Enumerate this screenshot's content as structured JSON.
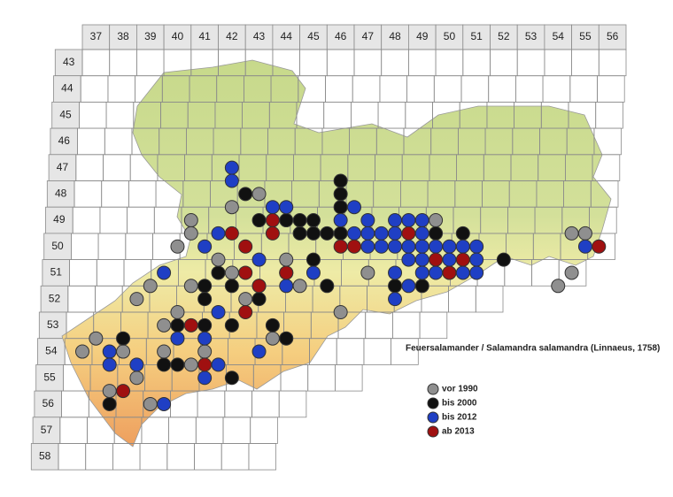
{
  "map": {
    "title": "Feuersalamander / Salamandra salamandra (Linnaeus, 1758)",
    "columns": [
      37,
      38,
      39,
      40,
      41,
      42,
      43,
      44,
      45,
      46,
      47,
      48,
      49,
      50,
      51,
      52,
      53,
      54,
      55,
      56
    ],
    "rows": [
      43,
      44,
      45,
      46,
      47,
      48,
      49,
      50,
      51,
      52,
      53,
      54,
      55,
      56,
      57,
      58
    ],
    "series": [
      {
        "label": "vor 1990",
        "color": "#8f8f8f",
        "points": [
          [
            40.5,
            49
          ],
          [
            40.5,
            49.5
          ],
          [
            42,
            48.5
          ],
          [
            43,
            48
          ],
          [
            40,
            50
          ],
          [
            41.5,
            50.5
          ],
          [
            40.5,
            51.5
          ],
          [
            39,
            51.5
          ],
          [
            38.5,
            52
          ],
          [
            40,
            52.5
          ],
          [
            39.5,
            53
          ],
          [
            37,
            53.5
          ],
          [
            36.5,
            54
          ],
          [
            38,
            54
          ],
          [
            39.5,
            54
          ],
          [
            41,
            54
          ],
          [
            38.5,
            55
          ],
          [
            39,
            56
          ],
          [
            40.5,
            54.5
          ],
          [
            42,
            51
          ],
          [
            44.5,
            51.5
          ],
          [
            46,
            52.5
          ],
          [
            47,
            51
          ],
          [
            49.5,
            49
          ],
          [
            54.5,
            49.5
          ],
          [
            55,
            49.5
          ],
          [
            54,
            51.5
          ],
          [
            54.5,
            51
          ],
          [
            42.5,
            52
          ],
          [
            43.5,
            53.5
          ],
          [
            44,
            50.5
          ],
          [
            37.5,
            55.5
          ]
        ]
      },
      {
        "label": "bis 2000",
        "color": "#111111",
        "points": [
          [
            42.5,
            48
          ],
          [
            46,
            47.5
          ],
          [
            46,
            48
          ],
          [
            46,
            48.5
          ],
          [
            43,
            49
          ],
          [
            44,
            49
          ],
          [
            44.5,
            49
          ],
          [
            45,
            49
          ],
          [
            44.5,
            49.5
          ],
          [
            45,
            49.5
          ],
          [
            45.5,
            49.5
          ],
          [
            46,
            49.5
          ],
          [
            49.5,
            49.5
          ],
          [
            50.5,
            49.5
          ],
          [
            52,
            50.5
          ],
          [
            41.5,
            51
          ],
          [
            41,
            51.5
          ],
          [
            42,
            51.5
          ],
          [
            41,
            52
          ],
          [
            43,
            51.5
          ],
          [
            44,
            51
          ],
          [
            40,
            53
          ],
          [
            41,
            53
          ],
          [
            38,
            53.5
          ],
          [
            39.5,
            54.5
          ],
          [
            40,
            54.5
          ],
          [
            42,
            55
          ],
          [
            37.5,
            56
          ],
          [
            43.5,
            53
          ],
          [
            44,
            53.5
          ],
          [
            42,
            53
          ],
          [
            48,
            51.5
          ],
          [
            49,
            51.5
          ],
          [
            45.5,
            51.5
          ],
          [
            45,
            50.5
          ],
          [
            43,
            52
          ]
        ]
      },
      {
        "label": "bis 2012",
        "color": "#1f3fc4",
        "points": [
          [
            42,
            47
          ],
          [
            42,
            47.5
          ],
          [
            43.5,
            48.5
          ],
          [
            44,
            48.5
          ],
          [
            46.5,
            48.5
          ],
          [
            46,
            49
          ],
          [
            47,
            49
          ],
          [
            48,
            49
          ],
          [
            48.5,
            49
          ],
          [
            49,
            49
          ],
          [
            41.5,
            49.5
          ],
          [
            46.5,
            49.5
          ],
          [
            47,
            49.5
          ],
          [
            47.5,
            49.5
          ],
          [
            48,
            49.5
          ],
          [
            49,
            49.5
          ],
          [
            47,
            50
          ],
          [
            47.5,
            50
          ],
          [
            48,
            50
          ],
          [
            48.5,
            50
          ],
          [
            49,
            50
          ],
          [
            49.5,
            50
          ],
          [
            50,
            50
          ],
          [
            50.5,
            50
          ],
          [
            51,
            50
          ],
          [
            48.5,
            50.5
          ],
          [
            49,
            50.5
          ],
          [
            50,
            50.5
          ],
          [
            51,
            50.5
          ],
          [
            48,
            51
          ],
          [
            49,
            51
          ],
          [
            49.5,
            51
          ],
          [
            50,
            51
          ],
          [
            51,
            51
          ],
          [
            48,
            52
          ],
          [
            48.5,
            51.5
          ],
          [
            50.5,
            51
          ],
          [
            45,
            51
          ],
          [
            44,
            51.5
          ],
          [
            43,
            50.5
          ],
          [
            41,
            50
          ],
          [
            39.5,
            51
          ],
          [
            40,
            53.5
          ],
          [
            41,
            53.5
          ],
          [
            41.5,
            54.5
          ],
          [
            37.5,
            54
          ],
          [
            37.5,
            54.5
          ],
          [
            38.5,
            54.5
          ],
          [
            39.5,
            56
          ],
          [
            41,
            55
          ],
          [
            55,
            50
          ],
          [
            41.5,
            52.5
          ],
          [
            43,
            54
          ]
        ]
      },
      {
        "label": "ab 2013",
        "color": "#a01010",
        "points": [
          [
            43.5,
            49
          ],
          [
            42,
            49.5
          ],
          [
            43.5,
            49.5
          ],
          [
            42.5,
            50
          ],
          [
            46,
            50
          ],
          [
            46.5,
            50
          ],
          [
            48.5,
            49.5
          ],
          [
            49.5,
            50.5
          ],
          [
            50.5,
            50.5
          ],
          [
            50,
            51
          ],
          [
            55.5,
            50
          ],
          [
            42.5,
            51
          ],
          [
            43,
            51.5
          ],
          [
            42.5,
            52.5
          ],
          [
            40.5,
            53
          ],
          [
            41,
            54.5
          ],
          [
            38,
            55.5
          ],
          [
            44,
            51
          ]
        ]
      }
    ]
  }
}
